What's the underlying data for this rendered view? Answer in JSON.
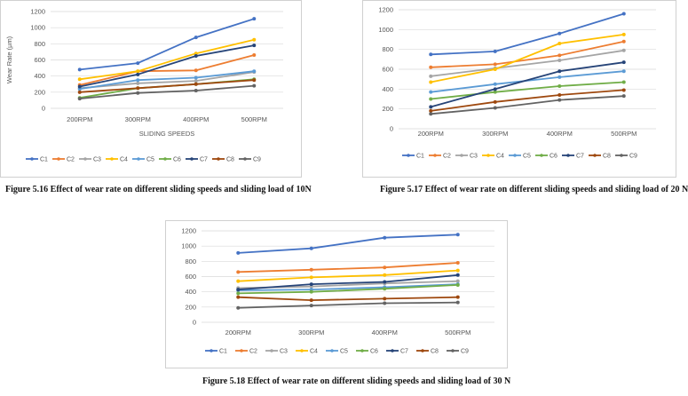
{
  "captions": [
    "Figure 5.16 Effect of wear rate on different sliding speeds and sliding load of 10N",
    "Figure 5.17 Effect of wear rate on different sliding speeds and sliding load of 20 N",
    "Figure 5.18 Effect of wear rate on different sliding speeds and sliding load of 30 N"
  ],
  "colors": [
    "#4472c4",
    "#ed7d31",
    "#a5a5a5",
    "#ffc000",
    "#5b9bd5",
    "#70ad47",
    "#264478",
    "#9e480e",
    "#636363"
  ],
  "chart_data": [
    {
      "type": "line",
      "categories": [
        "200RPM",
        "300RPM",
        "400RPM",
        "500RPM"
      ],
      "xlabel": "SLIDING SPEEDS",
      "ylabel": "Wear Rate (µm)",
      "ylim": [
        0,
        1200
      ],
      "yticks": [
        0,
        200,
        400,
        600,
        800,
        1000,
        1200
      ],
      "grid": true,
      "legend": "bottom",
      "series": [
        {
          "name": "C1",
          "values": [
            480,
            560,
            880,
            1110
          ]
        },
        {
          "name": "C2",
          "values": [
            290,
            460,
            470,
            660
          ]
        },
        {
          "name": "C3",
          "values": [
            250,
            310,
            340,
            450
          ]
        },
        {
          "name": "C4",
          "values": [
            360,
            460,
            680,
            850
          ]
        },
        {
          "name": "C5",
          "values": [
            240,
            350,
            380,
            460
          ]
        },
        {
          "name": "C6",
          "values": [
            130,
            250,
            300,
            360
          ]
        },
        {
          "name": "C7",
          "values": [
            270,
            420,
            650,
            780
          ]
        },
        {
          "name": "C8",
          "values": [
            200,
            250,
            300,
            350
          ]
        },
        {
          "name": "C9",
          "values": [
            120,
            190,
            220,
            280
          ]
        }
      ]
    },
    {
      "type": "line",
      "categories": [
        "200RPM",
        "300RPM",
        "400RPM",
        "500RPM"
      ],
      "xlabel": "",
      "ylabel": "",
      "ylim": [
        0,
        1200
      ],
      "yticks": [
        0,
        200,
        400,
        600,
        800,
        1000,
        1200
      ],
      "grid": true,
      "legend": "bottom",
      "series": [
        {
          "name": "C1",
          "values": [
            750,
            780,
            960,
            1160
          ]
        },
        {
          "name": "C2",
          "values": [
            620,
            650,
            740,
            880
          ]
        },
        {
          "name": "C3",
          "values": [
            530,
            610,
            690,
            790
          ]
        },
        {
          "name": "C4",
          "values": [
            470,
            600,
            860,
            950
          ]
        },
        {
          "name": "C5",
          "values": [
            370,
            450,
            520,
            580
          ]
        },
        {
          "name": "C6",
          "values": [
            300,
            370,
            430,
            470
          ]
        },
        {
          "name": "C7",
          "values": [
            220,
            400,
            580,
            670
          ]
        },
        {
          "name": "C8",
          "values": [
            180,
            270,
            340,
            390
          ]
        },
        {
          "name": "C9",
          "values": [
            150,
            210,
            290,
            330
          ]
        }
      ]
    },
    {
      "type": "line",
      "categories": [
        "200RPM",
        "300RPM",
        "400RPM",
        "500RPM"
      ],
      "xlabel": "",
      "ylabel": "",
      "ylim": [
        0,
        1200
      ],
      "yticks": [
        0,
        200,
        400,
        600,
        800,
        1000,
        1200
      ],
      "grid": true,
      "legend": "bottom",
      "series": [
        {
          "name": "C1",
          "values": [
            910,
            970,
            1110,
            1150
          ]
        },
        {
          "name": "C2",
          "values": [
            660,
            690,
            720,
            780
          ]
        },
        {
          "name": "C3",
          "values": [
            450,
            470,
            510,
            540
          ]
        },
        {
          "name": "C4",
          "values": [
            540,
            590,
            620,
            680
          ]
        },
        {
          "name": "C5",
          "values": [
            420,
            430,
            460,
            500
          ]
        },
        {
          "name": "C6",
          "values": [
            380,
            400,
            440,
            490
          ]
        },
        {
          "name": "C7",
          "values": [
            430,
            500,
            530,
            620
          ]
        },
        {
          "name": "C8",
          "values": [
            330,
            290,
            310,
            330
          ]
        },
        {
          "name": "C9",
          "values": [
            190,
            220,
            250,
            260
          ]
        }
      ]
    }
  ]
}
